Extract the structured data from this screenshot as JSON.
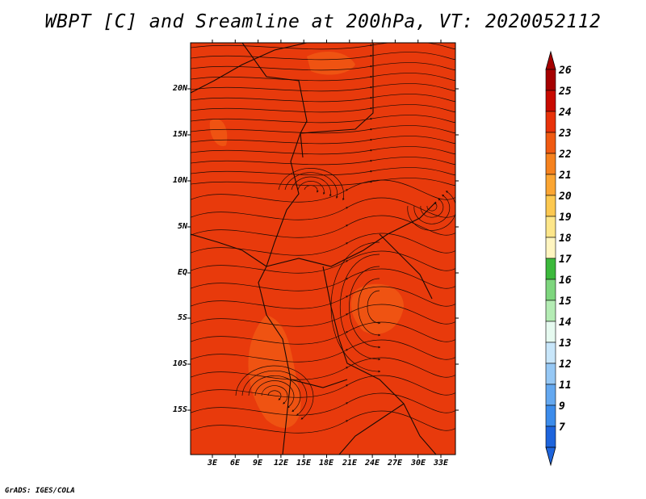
{
  "title": "WBPT [C] and Sreamline at 200hPa, VT: 2020052112",
  "footer": "GrADS: IGES/COLA",
  "map": {
    "variable": "WBPT [C]",
    "overlay": "Sreamline",
    "level": "200hPa",
    "valid_time": "2020052112",
    "lat_labels": [
      "20N",
      "15N",
      "10N",
      "5N",
      "EQ",
      "5S",
      "10S",
      "15S"
    ],
    "lon_labels": [
      "3E",
      "6E",
      "9E",
      "12E",
      "15E",
      "18E",
      "21E",
      "24E",
      "27E",
      "30E",
      "33E"
    ],
    "field_color": "#e83a0c",
    "field_color_light": "#f05a14",
    "coast_color": "#1a0a05"
  },
  "colorbar": {
    "labels": [
      "26",
      "25",
      "24",
      "23",
      "22",
      "21",
      "20",
      "19",
      "18",
      "17",
      "16",
      "15",
      "14",
      "13",
      "12",
      "11",
      "9",
      "7"
    ],
    "colors": [
      "#a50000",
      "#c80a00",
      "#e8320a",
      "#f05a12",
      "#f6821e",
      "#fba532",
      "#fcc850",
      "#fde68a",
      "#fff5c0",
      "#3cb93c",
      "#7ed67e",
      "#b4ecb4",
      "#e6faf0",
      "#c8e6fa",
      "#96c8f5",
      "#64a8f0",
      "#3c8ceb",
      "#1e64dc"
    ]
  }
}
